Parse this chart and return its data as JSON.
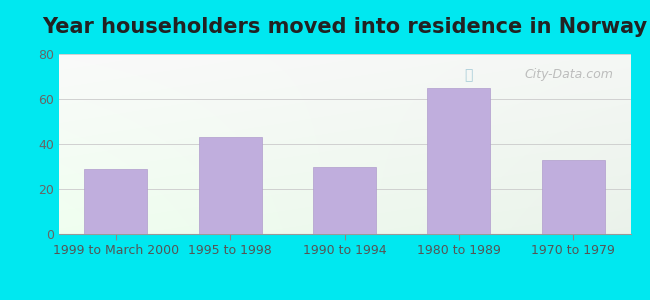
{
  "title": "Year householders moved into residence in Norway",
  "categories": [
    "1999 to March 2000",
    "1995 to 1998",
    "1990 to 1994",
    "1980 to 1989",
    "1970 to 1979"
  ],
  "values": [
    29,
    43,
    30,
    65,
    33
  ],
  "bar_color": "#c0aedd",
  "bar_edge_color": "#b09dcc",
  "ylim": [
    0,
    80
  ],
  "yticks": [
    0,
    20,
    40,
    60,
    80
  ],
  "background_outer": "#00e8f0",
  "grid_color": "#d0d0d0",
  "title_fontsize": 15,
  "tick_fontsize": 9,
  "watermark": "City-Data.com",
  "gradient_top_left": "#e8f5e8",
  "gradient_top_right": "#f5f5f5",
  "gradient_bottom_left": "#d0efd0",
  "gradient_bottom_right": "#e8f5e8"
}
